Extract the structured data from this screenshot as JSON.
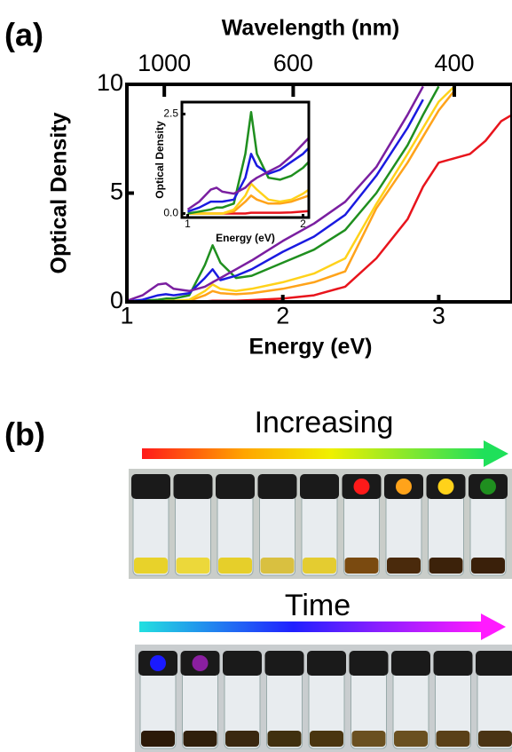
{
  "panel_labels": [
    "(a)",
    "(b)"
  ],
  "photo_captions": [
    "Increasing",
    "Time"
  ],
  "chart_data": [
    {
      "type": "line",
      "x2label": "Wavelength (nm)",
      "xlabel": "Energy (eV)",
      "ylabel": "Optical Density",
      "xlim": [
        1,
        3.47
      ],
      "ylim": [
        0,
        10
      ],
      "xticks": [
        1,
        2,
        3
      ],
      "yticks": [
        0,
        5,
        10
      ],
      "x2ticks": [
        1000,
        600,
        400
      ],
      "x": [
        1.0,
        1.1,
        1.2,
        1.25,
        1.3,
        1.4,
        1.5,
        1.55,
        1.6,
        1.7,
        1.8,
        2.0,
        2.2,
        2.4,
        2.6,
        2.8,
        2.9,
        3.0,
        3.1,
        3.2,
        3.3,
        3.4,
        3.47
      ],
      "series": [
        {
          "color": "#e8141c",
          "values": [
            0,
            0,
            0,
            0,
            0,
            0,
            0.02,
            0.05,
            0.05,
            0.05,
            0.08,
            0.15,
            0.3,
            0.7,
            2.0,
            3.8,
            5.3,
            6.4,
            6.6,
            6.8,
            7.4,
            8.3,
            8.6
          ]
        },
        {
          "color": "#ffa31a",
          "values": [
            0,
            0,
            0,
            0,
            0,
            0.05,
            0.3,
            0.5,
            0.4,
            0.35,
            0.4,
            0.6,
            0.9,
            1.4,
            4.3,
            6.4,
            7.6,
            8.8,
            9.7,
            null,
            null,
            null,
            null
          ]
        },
        {
          "color": "#ffd21a",
          "values": [
            0,
            0,
            0,
            0.05,
            0.05,
            0.1,
            0.5,
            0.8,
            0.6,
            0.5,
            0.6,
            0.9,
            1.3,
            2.0,
            4.5,
            6.8,
            8.0,
            9.2,
            9.9,
            null,
            null,
            null,
            null
          ]
        },
        {
          "color": "#1f8f1f",
          "values": [
            0,
            0.05,
            0.1,
            0.15,
            0.15,
            0.3,
            1.7,
            2.6,
            1.8,
            1.1,
            1.2,
            1.8,
            2.4,
            3.3,
            5.0,
            7.2,
            8.6,
            9.9,
            null,
            null,
            null,
            null,
            null
          ]
        },
        {
          "color": "#1a1ae0",
          "values": [
            0.02,
            0.1,
            0.3,
            0.35,
            0.3,
            0.4,
            1.1,
            1.5,
            1.0,
            1.2,
            1.5,
            2.3,
            3.0,
            4.0,
            5.8,
            8.0,
            9.3,
            null,
            null,
            null,
            null,
            null,
            null
          ]
        },
        {
          "color": "#7a1fa0",
          "values": [
            0.05,
            0.3,
            0.8,
            0.85,
            0.6,
            0.5,
            0.7,
            0.9,
            1.1,
            1.5,
            1.9,
            2.8,
            3.6,
            4.6,
            6.2,
            8.6,
            9.9,
            null,
            null,
            null,
            null,
            null,
            null
          ]
        }
      ]
    },
    {
      "type": "line",
      "xlabel": "Energy (eV)",
      "ylabel": "Optical Density",
      "xlim": [
        0.95,
        2.05
      ],
      "ylim": [
        -0.1,
        2.8
      ],
      "xticks": [
        1,
        2
      ],
      "yticks": [
        {
          "value": 0,
          "label": "0.0"
        },
        {
          "value": 2.5,
          "label": "2.5"
        }
      ],
      "x": [
        1.0,
        1.1,
        1.2,
        1.25,
        1.3,
        1.4,
        1.5,
        1.55,
        1.6,
        1.7,
        1.8,
        1.9,
        2.0,
        2.05
      ],
      "series": [
        {
          "color": "#e8141c",
          "values": [
            0,
            0,
            0,
            0,
            0,
            0,
            0,
            0.02,
            0.02,
            0.02,
            0.02,
            0.03,
            0.05,
            0.06
          ]
        },
        {
          "color": "#ffa31a",
          "values": [
            0,
            0,
            0,
            0,
            0,
            0.05,
            0.3,
            0.45,
            0.35,
            0.25,
            0.25,
            0.3,
            0.4,
            0.45
          ]
        },
        {
          "color": "#ffd21a",
          "values": [
            0,
            0,
            0,
            0,
            0,
            0.1,
            0.45,
            0.75,
            0.6,
            0.35,
            0.3,
            0.35,
            0.5,
            0.6
          ]
        },
        {
          "color": "#1f8f1f",
          "values": [
            0,
            0.05,
            0.1,
            0.15,
            0.15,
            0.25,
            1.5,
            2.55,
            1.5,
            0.9,
            0.85,
            0.95,
            1.15,
            1.3
          ]
        },
        {
          "color": "#1a1ae0",
          "values": [
            0.05,
            0.15,
            0.3,
            0.3,
            0.3,
            0.35,
            0.9,
            1.5,
            1.2,
            1.0,
            1.1,
            1.3,
            1.5,
            1.65
          ]
        },
        {
          "color": "#7a1fa0",
          "values": [
            0.1,
            0.3,
            0.6,
            0.65,
            0.55,
            0.5,
            0.65,
            0.8,
            0.9,
            1.05,
            1.2,
            1.45,
            1.75,
            1.9
          ]
        }
      ]
    }
  ]
}
